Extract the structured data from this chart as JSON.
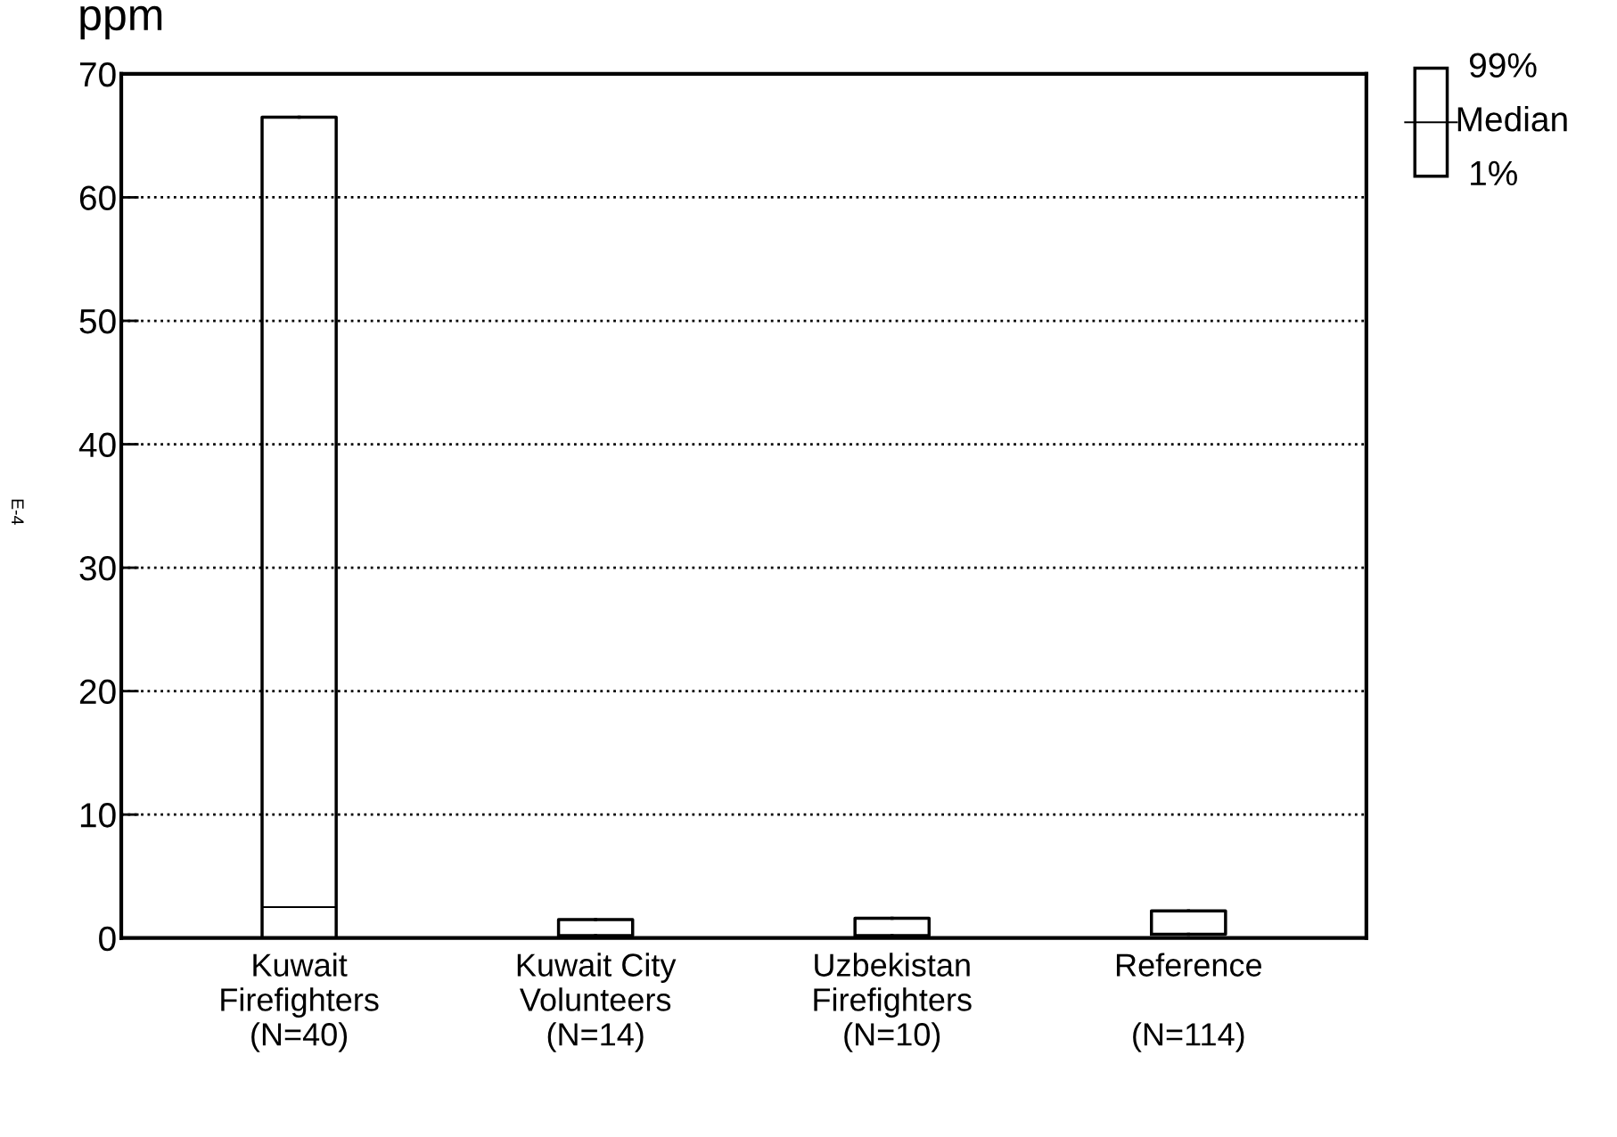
{
  "chart_data": {
    "type": "box",
    "ylabel": "ppm",
    "categories": [
      "Kuwait\nFirefighters\n(N=40)",
      "Kuwait City\nVolunteers\n(N=14)",
      "Uzbekistan\nFirefighters\n(N=10)",
      "Reference\n\n(N=114)"
    ],
    "boxes": [
      {
        "low": 0,
        "q1": 0,
        "median": 2.5,
        "q3": 66.5,
        "high": 66.5
      },
      {
        "low": 0.2,
        "q1": 0.2,
        "median": 0.2,
        "q3": 1.5,
        "high": 1.5
      },
      {
        "low": 0.2,
        "q1": 0.2,
        "median": 0.2,
        "q3": 1.6,
        "high": 1.6
      },
      {
        "low": 0.3,
        "q1": 0.3,
        "median": 0.3,
        "q3": 2.2,
        "high": 2.2
      }
    ],
    "color": "#000000",
    "ylim": [
      0,
      70
    ],
    "yticks": [
      0,
      10,
      20,
      30,
      40,
      50,
      60,
      70
    ],
    "grid": "y",
    "line_style": "dotted",
    "annotations": [
      "E-4",
      "99%",
      "Median",
      "1%"
    ]
  }
}
